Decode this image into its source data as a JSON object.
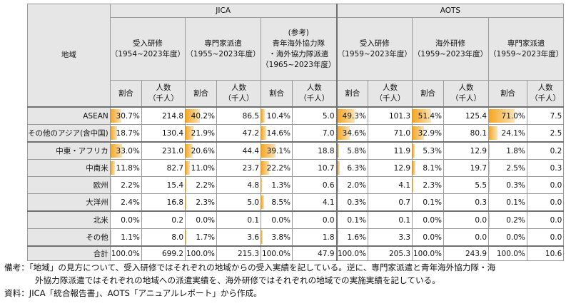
{
  "table": {
    "region_header": "地域",
    "group_headers": [
      "JICA",
      "AOTS"
    ],
    "programs": [
      {
        "name": "受入研修",
        "period": "（1954~2023年度）"
      },
      {
        "name": "専門家派遣",
        "period": "（1955~2023年度）"
      },
      {
        "name": "(参考)\n青年海外協力隊\n・海外協力隊派遣",
        "period": "（1965~2023年度）"
      },
      {
        "name": "受入研修",
        "period": "（1959~2023年度）"
      },
      {
        "name": "海外研修",
        "period": "（1959~2023年度）"
      },
      {
        "name": "専門家派遣",
        "period": "（1959~2023年度）"
      }
    ],
    "sub_pct": "割合",
    "sub_num": "人数\n（千人）",
    "rows": [
      {
        "region": "ASEAN",
        "cells": [
          [
            "30.7%",
            "214.8"
          ],
          [
            "40.2%",
            "86.5"
          ],
          [
            "10.4%",
            "5.0"
          ],
          [
            "49.3%",
            "101.3"
          ],
          [
            "51.4%",
            "125.4"
          ],
          [
            "71.0%",
            "7.5"
          ]
        ]
      },
      {
        "region": "その他のアジア(含中国)",
        "cells": [
          [
            "18.7%",
            "130.4"
          ],
          [
            "21.9%",
            "47.2"
          ],
          [
            "14.6%",
            "7.0"
          ],
          [
            "34.6%",
            "71.0"
          ],
          [
            "32.9%",
            "80.1"
          ],
          [
            "24.1%",
            "2.5"
          ]
        ]
      },
      {
        "region": "中東・アフリカ",
        "cells": [
          [
            "33.0%",
            "231.0"
          ],
          [
            "20.6%",
            "44.4"
          ],
          [
            "39.1%",
            "18.8"
          ],
          [
            "5.8%",
            "11.9"
          ],
          [
            "5.3%",
            "12.9"
          ],
          [
            "1.8%",
            "0.2"
          ]
        ]
      },
      {
        "region": "中南米",
        "cells": [
          [
            "11.8%",
            "82.7"
          ],
          [
            "11.0%",
            "23.7"
          ],
          [
            "22.2%",
            "10.7"
          ],
          [
            "6.3%",
            "12.9"
          ],
          [
            "8.1%",
            "19.7"
          ],
          [
            "2.5%",
            "0.3"
          ]
        ]
      },
      {
        "region": "欧州",
        "cells": [
          [
            "2.2%",
            "15.4"
          ],
          [
            "2.2%",
            "4.8"
          ],
          [
            "1.3%",
            "0.6"
          ],
          [
            "2.0%",
            "4.1"
          ],
          [
            "2.3%",
            "5.5"
          ],
          [
            "0.3%",
            "0.0"
          ]
        ]
      },
      {
        "region": "大洋州",
        "cells": [
          [
            "2.4%",
            "16.8"
          ],
          [
            "2.3%",
            "5.0"
          ],
          [
            "8.5%",
            "4.1"
          ],
          [
            "0.3%",
            "0.7"
          ],
          [
            "0.1%",
            "0.3"
          ],
          [
            "0.1%",
            "0.0"
          ]
        ]
      },
      {
        "region": "北米",
        "cells": [
          [
            "0.0%",
            "0.2"
          ],
          [
            "0.0%",
            "0.1"
          ],
          [
            "0.0%",
            "0.0"
          ],
          [
            "0.1%",
            "0.1"
          ],
          [
            "0.0%",
            "0.0"
          ],
          [
            "0.2%",
            "0.0"
          ]
        ]
      },
      {
        "region": "その他",
        "cells": [
          [
            "1.1%",
            "8.0"
          ],
          [
            "1.7%",
            "3.6"
          ],
          [
            "3.8%",
            "1.8"
          ],
          [
            "1.6%",
            "3.3"
          ],
          [
            "0.0%",
            "0.0"
          ],
          [
            "0.0%",
            "0.0"
          ]
        ]
      }
    ],
    "total": {
      "label": "合計",
      "cells": [
        [
          "100.0%",
          "699.2"
        ],
        [
          "100.0%",
          "215.3"
        ],
        [
          "100.0%",
          "47.9"
        ],
        [
          "100.0%",
          "205.3"
        ],
        [
          "100.0%",
          "243.9"
        ],
        [
          "100.0%",
          "10.6"
        ]
      ]
    },
    "bar_color": "#f5a623"
  },
  "notes": {
    "line1": "備考：「地域」の見方について、受入研修ではそれぞれの地域からの受入実績を記している。逆に、専門家派遣と青年海外協力隊・海",
    "line2": "外協力隊派遣ではそれぞれの地域への派遣実績を、海外研修ではそれぞれの地域での実施実績を記している。",
    "line3": "資料：JICA「統合報告書」、AOTS「アニュアルレポート」から作成。"
  }
}
